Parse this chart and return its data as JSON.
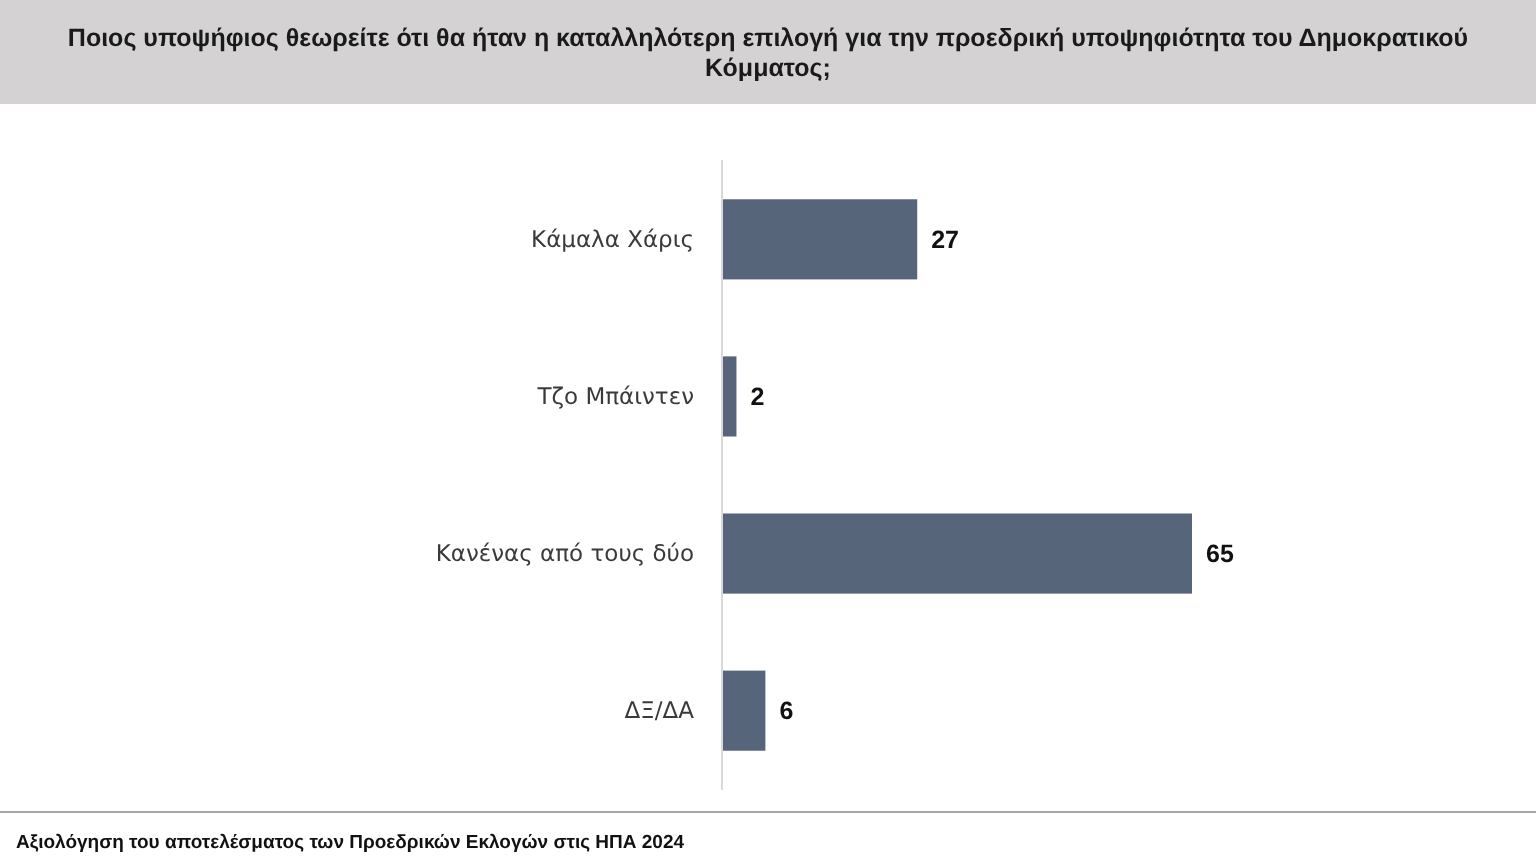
{
  "chart_data": {
    "type": "bar",
    "orientation": "horizontal",
    "title": "Ποιος υποψήφιος θεωρείτε ότι θα ήταν η καταλληλότερη επιλογή για την προεδρική υποψηφιότητα του Δημοκρατικού Κόμματος;",
    "categories": [
      "Κάμαλα Χάρις",
      "Τζο Μπάιντεν",
      "Κανένας από τους δύο",
      "ΔΞ/ΔΑ"
    ],
    "values": [
      27,
      2,
      65,
      6
    ],
    "color": "#56657a",
    "data_labels": true,
    "annotations": [
      "Αξιολόγηση του αποτελέσματος των Προεδρικών Εκλογών στις ΗΠΑ 2024"
    ]
  }
}
